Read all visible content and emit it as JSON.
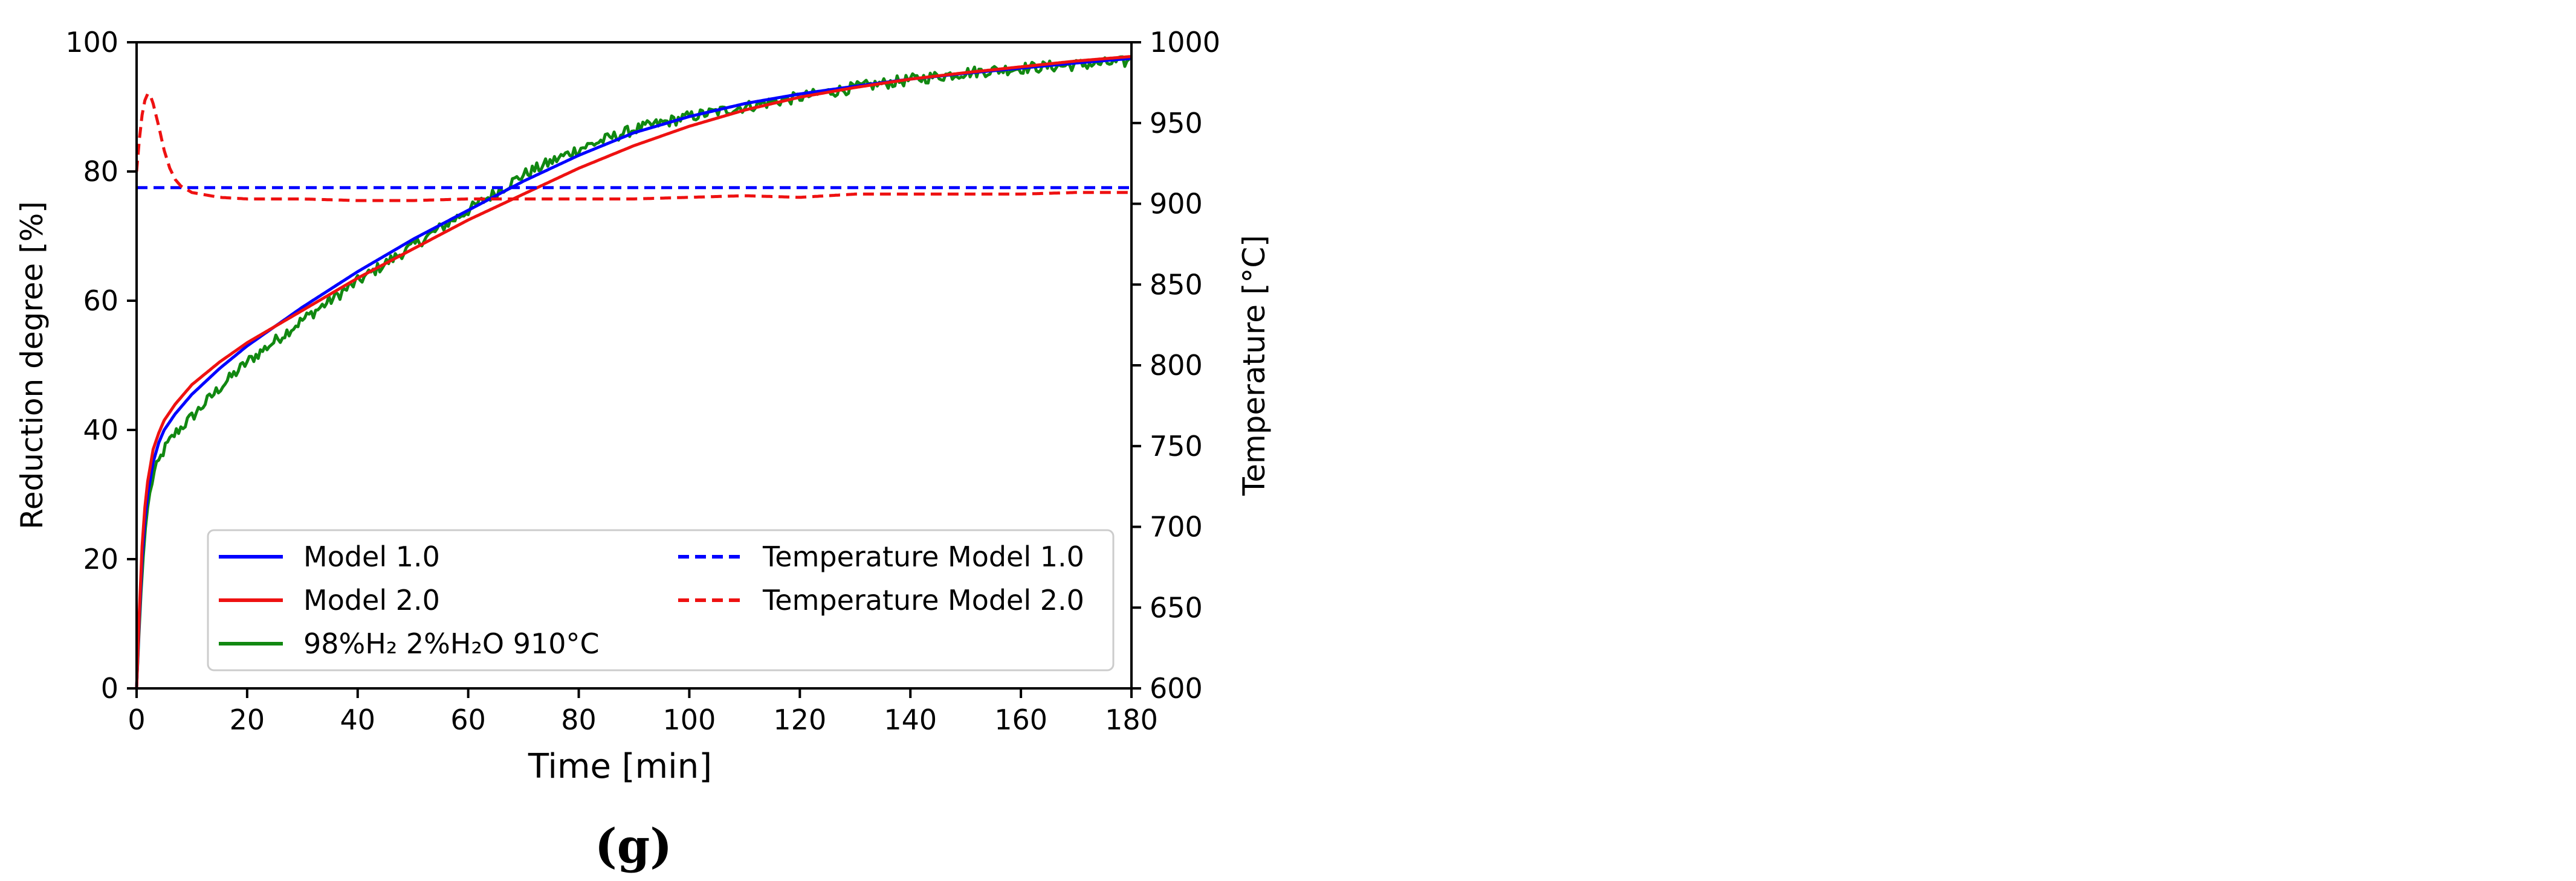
{
  "chart_data": {
    "type": "line",
    "xlabel": "Time [min]",
    "ylabel_left": "Reduction degree [%]",
    "ylabel_right": "Temperature [°C]",
    "xlim": [
      0,
      180
    ],
    "ylim_left": [
      0,
      100
    ],
    "ylim_right": [
      600,
      1000
    ],
    "x_ticks": [
      "0",
      "20",
      "40",
      "60",
      "80",
      "100",
      "120",
      "140",
      "160",
      "180"
    ],
    "y_left_ticks": [
      "0",
      "20",
      "40",
      "60",
      "80",
      "100"
    ],
    "y_right_ticks": [
      "600",
      "650",
      "700",
      "750",
      "800",
      "850",
      "900",
      "950",
      "1000"
    ],
    "grid": false,
    "legend_position": "lower-center",
    "panel_label": "(g)",
    "series": [
      {
        "name": "Model 1.0",
        "axis": "left",
        "color": "#0000ff",
        "style": "solid",
        "x": [
          0,
          0.5,
          1,
          1.5,
          2,
          3,
          4,
          5,
          7,
          10,
          15,
          20,
          30,
          40,
          50,
          60,
          70,
          80,
          90,
          100,
          110,
          120,
          130,
          140,
          150,
          160,
          170,
          180
        ],
        "y": [
          0,
          11,
          20,
          26,
          30,
          35,
          38,
          40,
          42.5,
          45.5,
          49.5,
          53,
          59,
          64.5,
          69.5,
          74,
          78.5,
          82.5,
          86,
          88.5,
          90.5,
          92,
          93.2,
          94.3,
          95.2,
          96,
          96.8,
          97.5
        ]
      },
      {
        "name": "Model 2.0",
        "axis": "left",
        "color": "#ee1111",
        "style": "solid",
        "x": [
          0,
          0.5,
          1,
          1.5,
          2,
          3,
          4,
          5,
          7,
          10,
          15,
          20,
          30,
          40,
          50,
          60,
          70,
          80,
          90,
          100,
          110,
          120,
          130,
          140,
          150,
          160,
          170,
          180
        ],
        "y": [
          0,
          12,
          22,
          28,
          32,
          37,
          39.5,
          41.5,
          44,
          47,
          50.5,
          53.5,
          58.5,
          63.5,
          68,
          72.5,
          76.5,
          80.5,
          84,
          87,
          89.5,
          91.5,
          93,
          94.3,
          95.3,
          96.2,
          97.1,
          97.8
        ]
      },
      {
        "name": "98%H₂ 2%H₂O 910°C",
        "axis": "left",
        "color": "#118811",
        "style": "solid",
        "noisy": true,
        "x": [
          0,
          0.5,
          1,
          1.5,
          2,
          3,
          4,
          5,
          7,
          10,
          15,
          20,
          30,
          40,
          50,
          60,
          70,
          80,
          90,
          100,
          110,
          120,
          130,
          140,
          150,
          160,
          170,
          180
        ],
        "y": [
          0,
          10,
          18,
          24,
          28,
          33,
          35,
          37,
          39.5,
          42,
          46.5,
          50.5,
          57,
          63,
          68.5,
          74,
          79.5,
          83.5,
          86.5,
          88.5,
          90,
          91.5,
          93,
          94.2,
          95.3,
          96,
          96.5,
          97
        ]
      },
      {
        "name": "Temperature Model 1.0",
        "axis": "right",
        "color": "#0000ff",
        "style": "dashed",
        "x": [
          0,
          180
        ],
        "y": [
          910,
          910
        ]
      },
      {
        "name": "Temperature Model 2.0",
        "axis": "right",
        "color": "#ee1111",
        "style": "dashed",
        "x": [
          0,
          0.5,
          1,
          1.5,
          2,
          2.5,
          3,
          4,
          5,
          6,
          7,
          8,
          10,
          15,
          20,
          30,
          40,
          50,
          60,
          70,
          80,
          90,
          100,
          110,
          120,
          130,
          140,
          150,
          160,
          170,
          180
        ],
        "y": [
          920,
          940,
          955,
          964,
          968,
          967,
          962,
          948,
          933,
          922,
          915,
          911,
          907,
          904,
          903,
          903,
          902,
          902,
          903,
          903,
          903,
          903,
          904,
          905,
          904,
          906,
          906,
          906,
          906,
          907,
          907
        ]
      }
    ]
  }
}
